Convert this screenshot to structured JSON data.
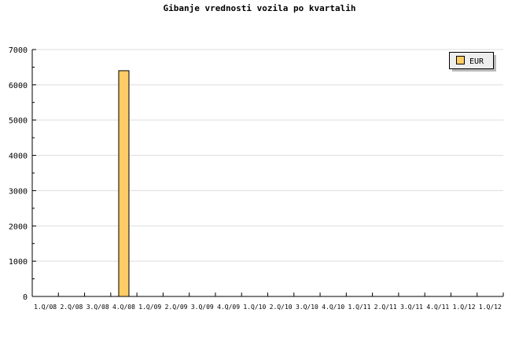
{
  "chart_data": {
    "type": "bar",
    "title": "Gibanje vrednosti vozila po kvartalih",
    "xlabel": "",
    "ylabel": "",
    "categories": [
      "1.Q/08",
      "2.Q/08",
      "3.Q/08",
      "4.Q/08",
      "1.Q/09",
      "2.Q/09",
      "3.Q/09",
      "4.Q/09",
      "1.Q/10",
      "2.Q/10",
      "3.Q/10",
      "4.Q/10",
      "1.Q/11",
      "2.Q/11",
      "3.Q/11",
      "4.Q/11",
      "1.Q/12",
      "1.Q/12"
    ],
    "series": [
      {
        "name": "EUR",
        "color": "#ffcc66",
        "values": [
          0,
          0,
          0,
          6400,
          0,
          0,
          0,
          0,
          0,
          0,
          0,
          0,
          0,
          0,
          0,
          0,
          0,
          0
        ]
      }
    ],
    "ylim": [
      0,
      7000
    ],
    "yticks": [
      0,
      1000,
      2000,
      3000,
      4000,
      5000,
      6000,
      7000
    ],
    "grid": true,
    "legend": "top-right"
  }
}
